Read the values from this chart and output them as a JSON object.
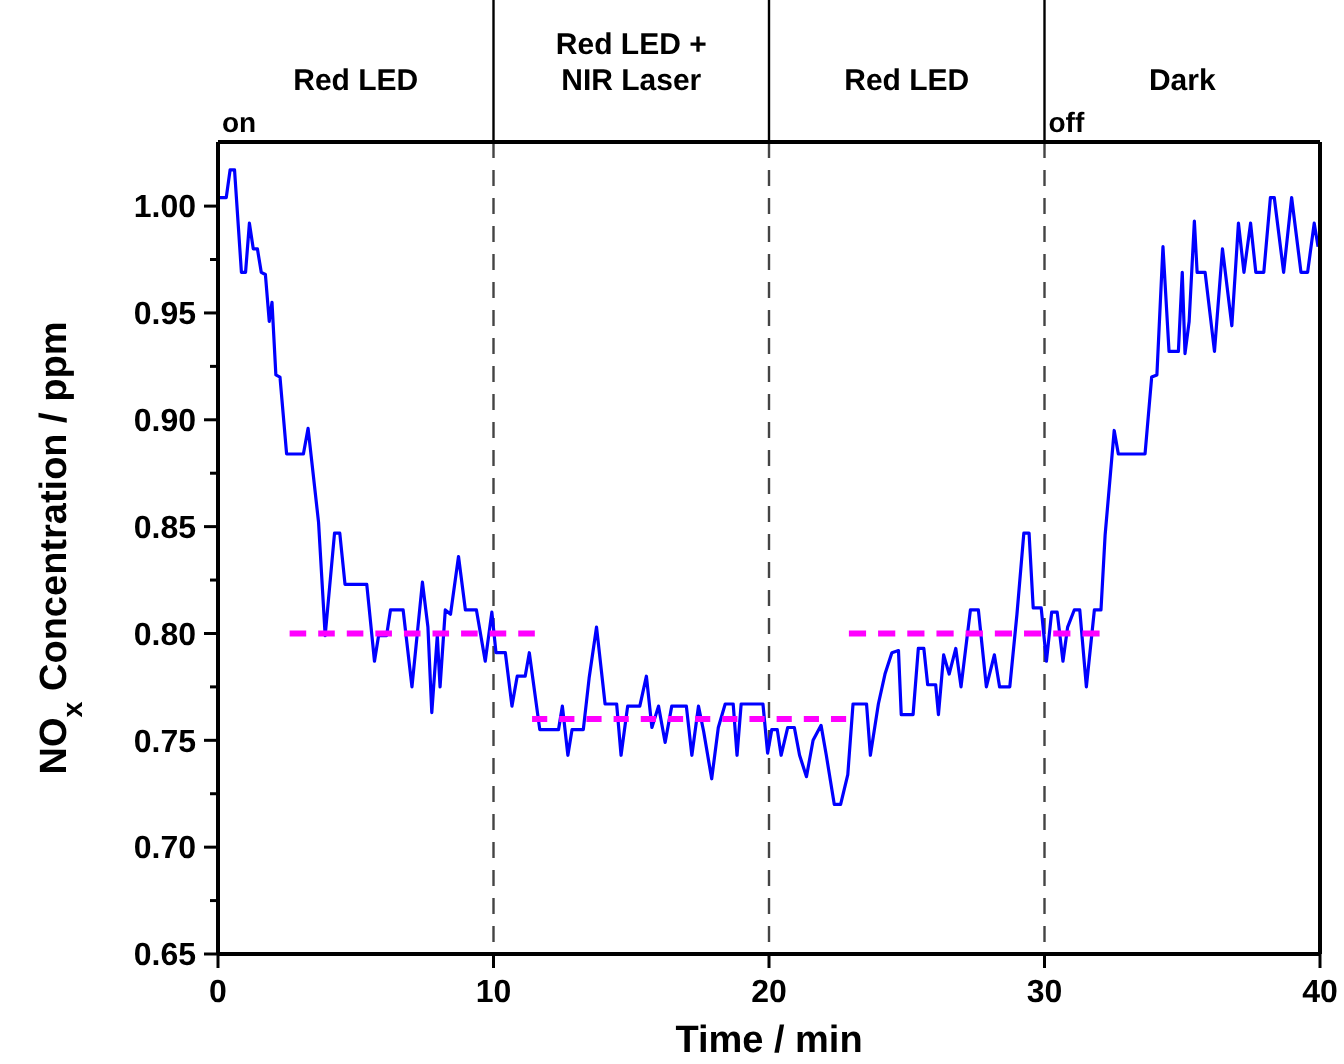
{
  "chart_data": {
    "type": "line",
    "xlabel": "Time / min",
    "ylabel": "NO$_{x}$ Concentration / ppm",
    "xlim": [
      0,
      40
    ],
    "xticks": [
      0,
      10,
      20,
      30,
      40
    ],
    "ylim": [
      0.65,
      1.03
    ],
    "yticks": [
      {
        "value": 0.65,
        "label": "0.65"
      },
      {
        "value": 0.675,
        "label": null
      },
      {
        "value": 0.7,
        "label": "0.70"
      },
      {
        "value": 0.725,
        "label": null
      },
      {
        "value": 0.75,
        "label": "0.75"
      },
      {
        "value": 0.775,
        "label": null
      },
      {
        "value": 0.8,
        "label": "0.80"
      },
      {
        "value": 0.825,
        "label": null
      },
      {
        "value": 0.85,
        "label": "0.85"
      },
      {
        "value": 0.875,
        "label": null
      },
      {
        "value": 0.9,
        "label": "0.90"
      },
      {
        "value": 0.925,
        "label": null
      },
      {
        "value": 0.95,
        "label": "0.95"
      },
      {
        "value": 0.975,
        "label": null
      },
      {
        "value": 1.0,
        "label": "1.00"
      }
    ],
    "series": [
      {
        "color": "#0000ff",
        "line_style": "solid",
        "x": [
          0.07,
          0.3,
          0.44,
          0.6,
          0.85,
          1.0,
          1.14,
          1.28,
          1.43,
          1.57,
          1.72,
          1.86,
          1.96,
          2.1,
          2.25,
          2.49,
          3.1,
          3.27,
          3.65,
          3.89,
          4.23,
          4.42,
          4.61,
          5.4,
          5.68,
          5.83,
          6.12,
          6.26,
          6.72,
          7.04,
          7.42,
          7.62,
          7.76,
          7.96,
          8.06,
          8.25,
          8.44,
          8.73,
          8.98,
          9.38,
          9.7,
          9.94,
          10.09,
          10.43,
          10.67,
          10.86,
          11.15,
          11.3,
          11.68,
          12.36,
          12.5,
          12.7,
          12.85,
          13.26,
          13.47,
          13.74,
          14.05,
          14.47,
          14.63,
          14.87,
          15.31,
          15.55,
          15.75,
          15.99,
          16.23,
          16.47,
          17.0,
          17.2,
          17.44,
          17.63,
          17.92,
          18.16,
          18.41,
          18.7,
          18.84,
          18.99,
          19.78,
          19.95,
          20.1,
          20.3,
          20.44,
          20.68,
          20.92,
          21.11,
          21.36,
          21.6,
          21.89,
          22.08,
          22.37,
          22.6,
          22.86,
          23.05,
          23.54,
          23.68,
          23.97,
          24.21,
          24.46,
          24.7,
          24.8,
          25.23,
          25.42,
          25.62,
          25.76,
          26.05,
          26.15,
          26.34,
          26.54,
          26.78,
          26.97,
          27.31,
          27.6,
          27.89,
          28.18,
          28.37,
          28.74,
          29.0,
          29.25,
          29.44,
          29.59,
          29.88,
          30.07,
          30.26,
          30.46,
          30.67,
          30.84,
          31.08,
          31.28,
          31.52,
          31.81,
          32.05,
          32.2,
          32.53,
          32.68,
          33.65,
          33.89,
          34.08,
          34.3,
          34.52,
          34.86,
          35.0,
          35.1,
          35.25,
          35.44,
          35.54,
          35.83,
          36.17,
          36.46,
          36.8,
          37.04,
          37.24,
          37.48,
          37.67,
          37.96,
          38.2,
          38.34,
          38.68,
          38.97,
          39.31,
          39.55,
          39.79,
          39.93
        ],
        "values": [
          1.004,
          1.004,
          1.017,
          1.017,
          0.969,
          0.969,
          0.992,
          0.98,
          0.98,
          0.969,
          0.968,
          0.946,
          0.955,
          0.921,
          0.92,
          0.884,
          0.884,
          0.896,
          0.852,
          0.799,
          0.847,
          0.847,
          0.823,
          0.823,
          0.787,
          0.799,
          0.799,
          0.811,
          0.811,
          0.775,
          0.824,
          0.803,
          0.763,
          0.799,
          0.775,
          0.811,
          0.809,
          0.836,
          0.811,
          0.811,
          0.787,
          0.81,
          0.791,
          0.791,
          0.766,
          0.78,
          0.78,
          0.791,
          0.755,
          0.755,
          0.766,
          0.743,
          0.755,
          0.755,
          0.779,
          0.803,
          0.767,
          0.767,
          0.743,
          0.766,
          0.766,
          0.78,
          0.756,
          0.766,
          0.749,
          0.766,
          0.766,
          0.743,
          0.766,
          0.754,
          0.732,
          0.756,
          0.767,
          0.767,
          0.743,
          0.767,
          0.767,
          0.744,
          0.755,
          0.755,
          0.743,
          0.756,
          0.756,
          0.743,
          0.733,
          0.75,
          0.757,
          0.743,
          0.72,
          0.72,
          0.734,
          0.767,
          0.767,
          0.743,
          0.767,
          0.781,
          0.791,
          0.792,
          0.762,
          0.762,
          0.793,
          0.793,
          0.776,
          0.776,
          0.762,
          0.79,
          0.781,
          0.793,
          0.775,
          0.811,
          0.811,
          0.775,
          0.79,
          0.775,
          0.775,
          0.809,
          0.847,
          0.847,
          0.812,
          0.812,
          0.787,
          0.81,
          0.81,
          0.787,
          0.803,
          0.811,
          0.811,
          0.775,
          0.811,
          0.811,
          0.846,
          0.895,
          0.884,
          0.884,
          0.92,
          0.921,
          0.981,
          0.932,
          0.932,
          0.969,
          0.931,
          0.946,
          0.993,
          0.969,
          0.969,
          0.932,
          0.98,
          0.944,
          0.992,
          0.969,
          0.992,
          0.969,
          0.969,
          1.004,
          1.004,
          0.969,
          1.004,
          0.969,
          0.969,
          0.992,
          0.981
        ]
      },
      {
        "color": "#ff00ff",
        "line_style": "dashed",
        "x": [
          2.6,
          11.5
        ],
        "values": [
          0.8,
          0.8
        ]
      },
      {
        "color": "#ff00ff",
        "line_style": "dashed",
        "x": [
          11.4,
          22.8
        ],
        "values": [
          0.76,
          0.76
        ]
      },
      {
        "color": "#ff00ff",
        "line_style": "dashed",
        "x": [
          22.9,
          32.0
        ],
        "values": [
          0.8,
          0.8
        ]
      }
    ],
    "ref_lines": [
      {
        "axis": "x",
        "value": 10,
        "color": "#444444",
        "line_style": "dashed"
      },
      {
        "axis": "x",
        "value": 20,
        "color": "#444444",
        "line_style": "dashed"
      },
      {
        "axis": "x",
        "value": 30,
        "color": "#444444",
        "line_style": "dashed"
      }
    ],
    "annotations": [
      "Red LED",
      "Red LED +\nNIR Laser",
      "Red LED",
      "Dark",
      "on",
      "off"
    ]
  }
}
